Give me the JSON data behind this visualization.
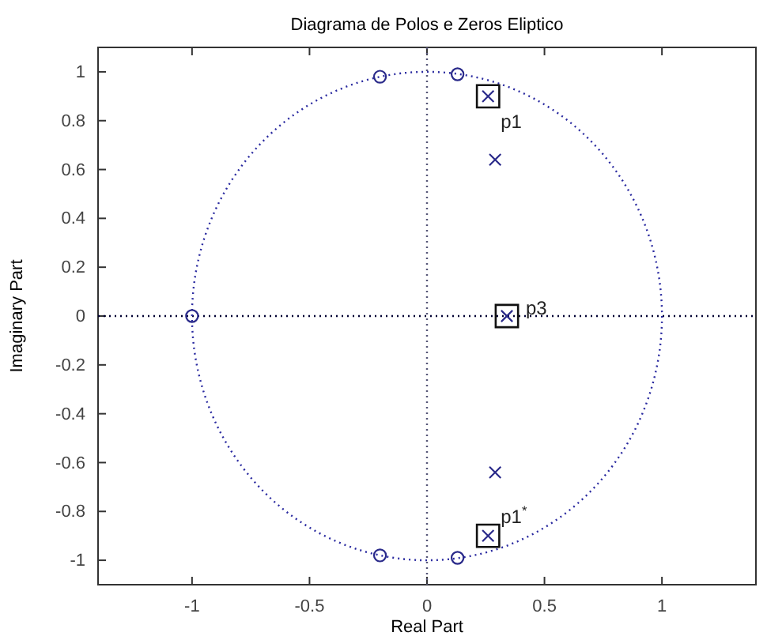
{
  "chart_data": {
    "type": "scatter",
    "title": "Diagrama de Polos e Zeros Eliptico",
    "xlabel": "Real Part",
    "ylabel": "Imaginary Part",
    "xlim": [
      -1.4,
      1.4
    ],
    "ylim": [
      -1.1,
      1.1
    ],
    "xticks": [
      -1,
      -0.5,
      0,
      0.5,
      1
    ],
    "yticks": [
      -1,
      -0.8,
      -0.6,
      -0.4,
      -0.2,
      0,
      0.2,
      0.4,
      0.6,
      0.8,
      1
    ],
    "grid": false,
    "ref_lines": [
      {
        "axis": "x",
        "value": 0,
        "color": "#555577",
        "line_style": "dotted"
      },
      {
        "axis": "y",
        "value": 0,
        "color": "#000033",
        "line_style": "dotted"
      }
    ],
    "series": [
      {
        "color": "#2a2a8a",
        "marker": "circle",
        "x": [
          -1,
          -0.2,
          0.13,
          -0.2,
          0.13
        ],
        "values": [
          0,
          0.98,
          0.99,
          -0.98,
          -0.99
        ]
      },
      {
        "color": "#2a2a8a",
        "marker": "cross",
        "x": [
          0.26,
          0.29,
          0.34,
          0.29,
          0.26
        ],
        "values": [
          0.9,
          0.64,
          0,
          -0.64,
          -0.9
        ]
      },
      {
        "color": "#111111",
        "marker": "square",
        "x": [
          0.26,
          0.34,
          0.26
        ],
        "values": [
          0.9,
          0,
          -0.9
        ],
        "value_labels": [
          "p1",
          "p3",
          "p1$^{*}$"
        ]
      }
    ]
  }
}
